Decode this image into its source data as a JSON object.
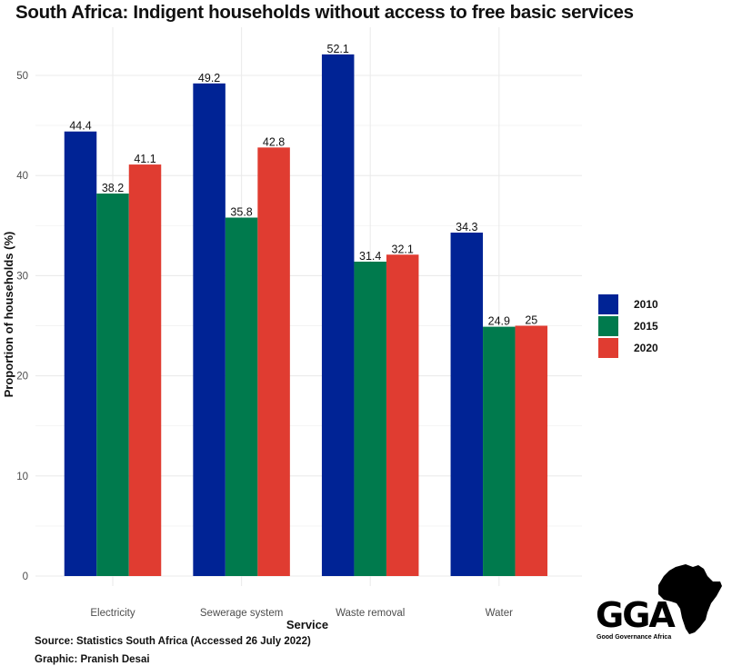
{
  "chart_data": {
    "type": "bar",
    "title": "South Africa: Indigent households without access to free basic services",
    "xlabel": "Service",
    "ylabel": "Proportion of households (%)",
    "categories": [
      "Electricity",
      "Sewerage system",
      "Waste removal",
      "Water"
    ],
    "series": [
      {
        "name": "2010",
        "color": "#002395",
        "values": [
          44.4,
          49.2,
          52.1,
          34.3
        ],
        "labels": [
          "44.4",
          "49.2",
          "52.1",
          "34.3"
        ]
      },
      {
        "name": "2015",
        "color": "#007A4D",
        "values": [
          38.2,
          35.8,
          31.4,
          24.9
        ],
        "labels": [
          "38.2",
          "35.8",
          "31.4",
          "24.9"
        ]
      },
      {
        "name": "2020",
        "color": "#E03C31",
        "values": [
          41.1,
          42.8,
          32.1,
          25.0
        ],
        "labels": [
          "41.1",
          "42.8",
          "32.1",
          "25"
        ]
      }
    ],
    "yticks": [
      0,
      10,
      20,
      30,
      40,
      50
    ],
    "ylim": [
      0,
      53.5
    ],
    "grid": true,
    "legend_position": "right"
  },
  "captions": {
    "source": "Source: Statistics South Africa (Accessed 26 July 2022)",
    "graphic": "Graphic: Pranish Desai"
  },
  "logo": {
    "abbrev": "GGA",
    "name": "Good Governance Africa",
    "icon": "africa-map-icon"
  }
}
